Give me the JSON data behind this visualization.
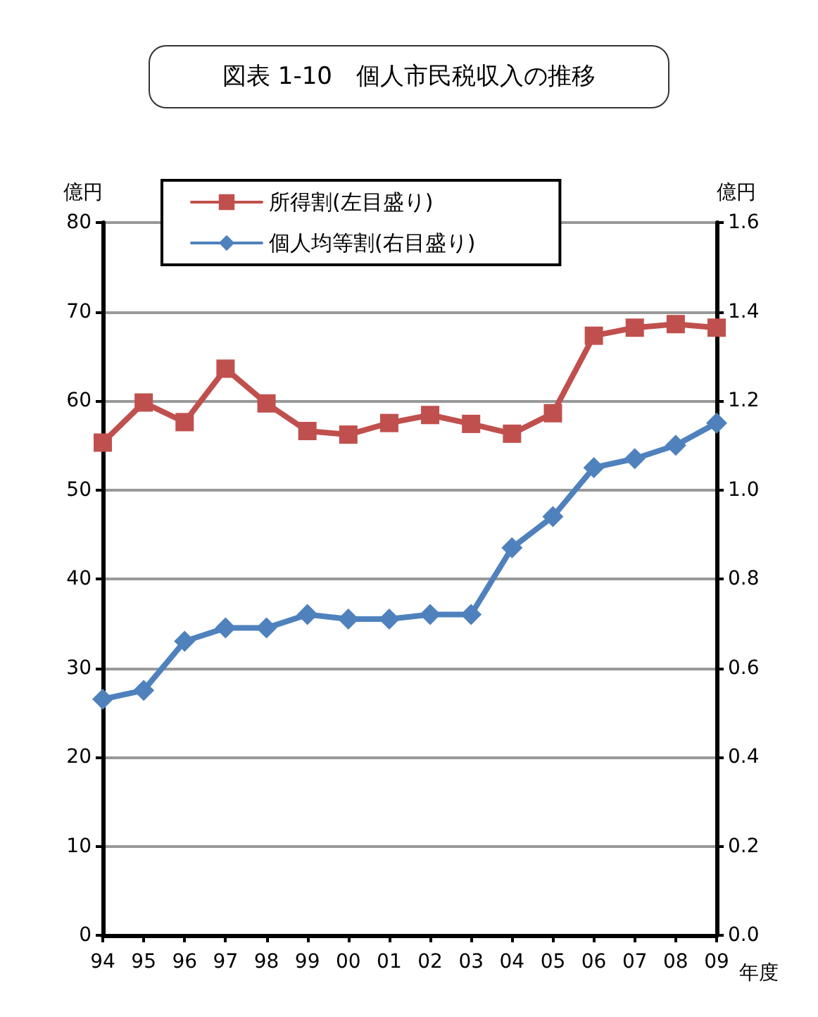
{
  "chart_data": {
    "type": "line",
    "title": "図表 1-10　個人市民税収入の推移",
    "ylabel": "億円",
    "y2label": "億円",
    "xlabel": "年度",
    "categories": [
      "94",
      "95",
      "96",
      "97",
      "98",
      "99",
      "00",
      "01",
      "02",
      "03",
      "04",
      "05",
      "06",
      "07",
      "08",
      "09"
    ],
    "series": [
      {
        "name": "所得割(左目盛り)",
        "color": "#c0504d",
        "marker": "square",
        "values": [
          55.3,
          59.8,
          57.6,
          63.6,
          59.7,
          56.6,
          56.2,
          57.5,
          58.4,
          57.4,
          56.3,
          58.6,
          67.3,
          68.2,
          68.6,
          68.2
        ]
      },
      {
        "name": "個人均等割(右目盛り)",
        "color": "#4f81bd",
        "marker": "diamond",
        "axis": "y2",
        "values": [
          0.53,
          0.55,
          0.66,
          0.69,
          0.69,
          0.72,
          0.71,
          0.71,
          0.72,
          0.72,
          0.87,
          0.94,
          1.05,
          1.07,
          1.1,
          1.15
        ]
      }
    ],
    "ylim": [
      0,
      80
    ],
    "yticks": [
      0,
      10,
      20,
      30,
      40,
      50,
      60,
      70,
      80
    ],
    "y2lim": [
      0,
      1.6
    ],
    "y2ticks": [
      {
        "value": 0,
        "label": "0.0"
      },
      {
        "value": 0.2,
        "label": "0.2"
      },
      {
        "value": 0.4,
        "label": "0.4"
      },
      {
        "value": 0.6,
        "label": "0.6"
      },
      {
        "value": 0.8,
        "label": "0.8"
      },
      {
        "value": 1,
        "label": "1.0"
      },
      {
        "value": 1.2,
        "label": "1.2"
      },
      {
        "value": 1.4,
        "label": "1.4"
      },
      {
        "value": 1.6,
        "label": "1.6"
      }
    ],
    "grid": "y",
    "legend": "top left",
    "line_style": "solid"
  }
}
